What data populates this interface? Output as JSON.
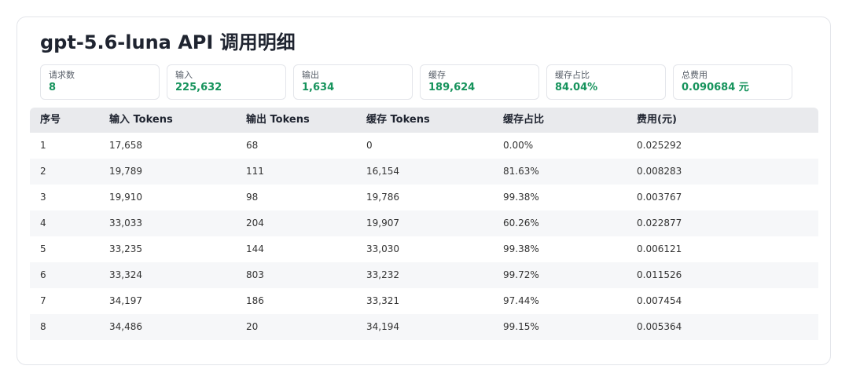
{
  "header": {
    "title": "gpt-5.6-luna API 调用明细"
  },
  "stats": [
    {
      "label": "请求数",
      "value": "8"
    },
    {
      "label": "输入",
      "value": "225,632"
    },
    {
      "label": "输出",
      "value": "1,634"
    },
    {
      "label": "缓存",
      "value": "189,624"
    },
    {
      "label": "缓存占比",
      "value": "84.04%"
    },
    {
      "label": "总费用",
      "value": "0.090684 元"
    }
  ],
  "table": {
    "columns": [
      "序号",
      "输入 Tokens",
      "输出 Tokens",
      "缓存 Tokens",
      "缓存占比",
      "费用(元)"
    ],
    "rows": [
      [
        "1",
        "17,658",
        "68",
        "0",
        "0.00%",
        "0.025292"
      ],
      [
        "2",
        "19,789",
        "111",
        "16,154",
        "81.63%",
        "0.008283"
      ],
      [
        "3",
        "19,910",
        "98",
        "19,786",
        "99.38%",
        "0.003767"
      ],
      [
        "4",
        "33,033",
        "204",
        "19,907",
        "60.26%",
        "0.022877"
      ],
      [
        "5",
        "33,235",
        "144",
        "33,030",
        "99.38%",
        "0.006121"
      ],
      [
        "6",
        "33,324",
        "803",
        "33,232",
        "99.72%",
        "0.011526"
      ],
      [
        "7",
        "34,197",
        "186",
        "33,321",
        "97.44%",
        "0.007454"
      ],
      [
        "8",
        "34,486",
        "20",
        "34,194",
        "99.15%",
        "0.005364"
      ]
    ]
  }
}
